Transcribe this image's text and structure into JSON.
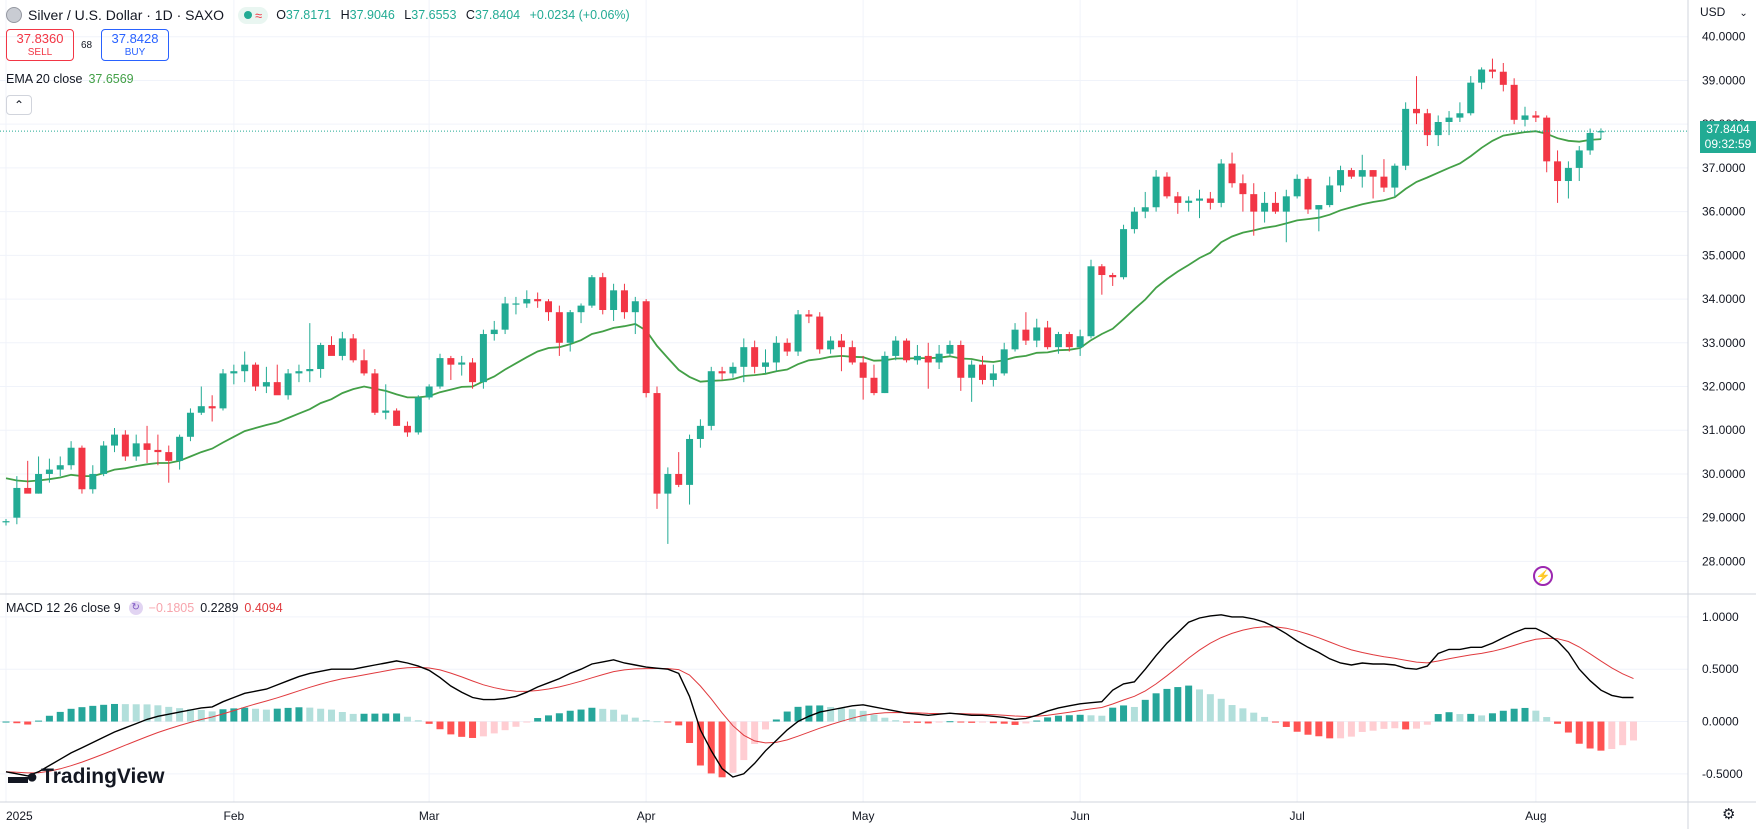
{
  "header": {
    "title": "Silver / U.S. Dollar · 1D · SAXO",
    "ohlc": {
      "open_label": "O",
      "open": "37.8171",
      "high_label": "H",
      "high": "37.9046",
      "low_label": "L",
      "low": "37.6553",
      "close_label": "C",
      "close": "37.8404",
      "change": "+0.0234 (+0.06%)"
    }
  },
  "trade": {
    "sell_price": "37.8360",
    "sell_label": "SELL",
    "spread": "68",
    "buy_price": "37.8428",
    "buy_label": "BUY"
  },
  "ema": {
    "label": "EMA 20 close",
    "value": "37.6569"
  },
  "macd": {
    "label": "MACD 12 26 close 9",
    "hist": "−0.1805",
    "macd": "0.2289",
    "signal": "0.4094"
  },
  "currency": "USD",
  "current_price": {
    "price": "37.8404",
    "countdown": "09:32:59"
  },
  "brand": "TradingView",
  "colors": {
    "up": "#22ab94",
    "down": "#f23645",
    "ema": "#43a047",
    "macd": "#000000",
    "signal": "#e03a3e",
    "hist_up_strong": "#26a69a",
    "hist_up_weak": "#b2dfdb",
    "hist_down_strong": "#ff5252",
    "hist_down_weak": "#ffcdd2"
  },
  "chart_data": [
    {
      "type": "candlestick",
      "ylim": [
        27.3,
        40.2
      ],
      "yticks": [
        "28.0000",
        "29.0000",
        "30.0000",
        "31.0000",
        "32.0000",
        "33.0000",
        "34.0000",
        "35.0000",
        "36.0000",
        "37.0000",
        "38.0000",
        "39.0000",
        "40.0000"
      ],
      "xticks": [
        {
          "label": "2025",
          "bar": 0
        },
        {
          "label": "Feb",
          "bar": 21
        },
        {
          "label": "Mar",
          "bar": 39
        },
        {
          "label": "Apr",
          "bar": 59
        },
        {
          "label": "May",
          "bar": 79
        },
        {
          "label": "Jun",
          "bar": 99
        },
        {
          "label": "Jul",
          "bar": 119
        },
        {
          "label": "Aug",
          "bar": 141
        }
      ],
      "candles": [
        [
          28.9,
          28.97,
          28.82,
          28.92
        ],
        [
          29.0,
          29.95,
          28.85,
          29.68
        ],
        [
          29.68,
          30.3,
          29.6,
          29.55
        ],
        [
          29.55,
          30.4,
          29.55,
          30.0
        ],
        [
          30.0,
          30.35,
          29.8,
          30.1
        ],
        [
          30.1,
          30.4,
          29.95,
          30.2
        ],
        [
          30.2,
          30.75,
          30.1,
          30.6
        ],
        [
          30.6,
          30.65,
          29.55,
          29.65
        ],
        [
          29.65,
          30.2,
          29.55,
          30.0
        ],
        [
          30.0,
          30.75,
          29.95,
          30.65
        ],
        [
          30.65,
          31.05,
          30.5,
          30.9
        ],
        [
          30.9,
          31.0,
          30.3,
          30.4
        ],
        [
          30.4,
          30.9,
          30.3,
          30.7
        ],
        [
          30.7,
          31.1,
          30.25,
          30.55
        ],
        [
          30.55,
          30.9,
          30.2,
          30.5
        ],
        [
          30.5,
          30.65,
          29.8,
          30.3
        ],
        [
          30.3,
          30.9,
          30.1,
          30.85
        ],
        [
          30.85,
          31.5,
          30.75,
          31.4
        ],
        [
          31.4,
          32.0,
          31.35,
          31.55
        ],
        [
          31.55,
          31.8,
          31.2,
          31.5
        ],
        [
          31.5,
          32.4,
          31.45,
          32.3
        ],
        [
          32.3,
          32.5,
          32.05,
          32.35
        ],
        [
          32.35,
          32.8,
          32.1,
          32.5
        ],
        [
          32.5,
          32.55,
          31.9,
          32.0
        ],
        [
          32.0,
          32.45,
          31.85,
          32.1
        ],
        [
          32.1,
          32.5,
          31.85,
          31.8
        ],
        [
          31.8,
          32.4,
          31.7,
          32.3
        ],
        [
          32.3,
          32.5,
          32.1,
          32.35
        ],
        [
          32.35,
          33.45,
          32.1,
          32.4
        ],
        [
          32.4,
          33.0,
          32.2,
          32.95
        ],
        [
          32.95,
          33.15,
          32.8,
          32.7
        ],
        [
          32.7,
          33.25,
          32.6,
          33.1
        ],
        [
          33.1,
          33.2,
          32.55,
          32.6
        ],
        [
          32.6,
          32.85,
          32.25,
          32.3
        ],
        [
          32.3,
          32.4,
          31.35,
          31.4
        ],
        [
          31.4,
          32.05,
          31.25,
          31.45
        ],
        [
          31.45,
          31.5,
          31.1,
          31.1
        ],
        [
          31.1,
          31.2,
          30.85,
          30.95
        ],
        [
          30.95,
          31.8,
          30.9,
          31.75
        ],
        [
          31.75,
          32.05,
          31.7,
          32.0
        ],
        [
          32.0,
          32.75,
          31.95,
          32.65
        ],
        [
          32.65,
          32.7,
          32.15,
          32.5
        ],
        [
          32.5,
          32.7,
          32.25,
          32.55
        ],
        [
          32.55,
          32.65,
          31.95,
          32.1
        ],
        [
          32.1,
          33.3,
          31.95,
          33.2
        ],
        [
          33.2,
          33.5,
          33.05,
          33.3
        ],
        [
          33.3,
          34.05,
          33.2,
          33.9
        ],
        [
          33.9,
          34.05,
          33.65,
          33.9
        ],
        [
          33.9,
          34.2,
          33.8,
          34.0
        ],
        [
          34.0,
          34.15,
          33.8,
          33.95
        ],
        [
          33.95,
          34.0,
          33.5,
          33.7
        ],
        [
          33.7,
          33.85,
          32.7,
          33.0
        ],
        [
          33.0,
          33.75,
          32.8,
          33.7
        ],
        [
          33.7,
          33.9,
          33.45,
          33.85
        ],
        [
          33.85,
          34.55,
          33.8,
          34.5
        ],
        [
          34.5,
          34.6,
          33.65,
          33.75
        ],
        [
          33.75,
          34.35,
          33.5,
          34.2
        ],
        [
          34.2,
          34.35,
          33.55,
          33.7
        ],
        [
          33.7,
          34.05,
          33.2,
          33.95
        ],
        [
          33.95,
          34.0,
          31.75,
          31.85
        ],
        [
          31.85,
          32.0,
          29.2,
          29.55
        ],
        [
          29.55,
          30.15,
          28.4,
          30.0
        ],
        [
          30.0,
          30.5,
          29.7,
          29.75
        ],
        [
          29.75,
          30.9,
          29.3,
          30.8
        ],
        [
          30.8,
          31.25,
          30.6,
          31.1
        ],
        [
          31.1,
          32.45,
          31.0,
          32.35
        ],
        [
          32.35,
          32.45,
          32.15,
          32.3
        ],
        [
          32.3,
          32.55,
          32.2,
          32.45
        ],
        [
          32.45,
          33.1,
          32.1,
          32.9
        ],
        [
          32.9,
          33.05,
          32.3,
          32.45
        ],
        [
          32.45,
          32.85,
          32.3,
          32.55
        ],
        [
          32.55,
          33.15,
          32.35,
          33.0
        ],
        [
          33.0,
          33.1,
          32.7,
          32.8
        ],
        [
          32.8,
          33.75,
          32.7,
          33.65
        ],
        [
          33.65,
          33.75,
          33.45,
          33.6
        ],
        [
          33.6,
          33.7,
          32.75,
          32.85
        ],
        [
          32.85,
          33.15,
          32.75,
          33.05
        ],
        [
          33.05,
          33.2,
          32.35,
          32.9
        ],
        [
          32.9,
          33.05,
          32.5,
          32.55
        ],
        [
          32.55,
          32.7,
          31.7,
          32.2
        ],
        [
          32.2,
          32.5,
          31.8,
          31.85
        ],
        [
          31.85,
          32.8,
          31.85,
          32.7
        ],
        [
          32.7,
          33.15,
          32.6,
          33.05
        ],
        [
          33.05,
          33.1,
          32.55,
          32.6
        ],
        [
          32.6,
          32.95,
          32.5,
          32.7
        ],
        [
          32.7,
          33.0,
          31.95,
          32.55
        ],
        [
          32.55,
          32.95,
          32.4,
          32.75
        ],
        [
          32.75,
          33.05,
          32.7,
          32.95
        ],
        [
          32.95,
          33.05,
          31.9,
          32.2
        ],
        [
          32.2,
          32.6,
          31.65,
          32.5
        ],
        [
          32.5,
          32.7,
          32.05,
          32.15
        ],
        [
          32.15,
          32.5,
          32.0,
          32.3
        ],
        [
          32.3,
          33.0,
          32.25,
          32.85
        ],
        [
          32.85,
          33.45,
          32.8,
          33.3
        ],
        [
          33.3,
          33.7,
          32.95,
          33.05
        ],
        [
          33.05,
          33.55,
          32.9,
          33.35
        ],
        [
          33.35,
          33.5,
          32.85,
          32.9
        ],
        [
          32.9,
          33.25,
          32.75,
          33.2
        ],
        [
          33.2,
          33.25,
          32.8,
          32.9
        ],
        [
          32.9,
          33.3,
          32.7,
          33.15
        ],
        [
          33.15,
          34.9,
          33.1,
          34.75
        ],
        [
          34.75,
          34.8,
          34.1,
          34.55
        ],
        [
          34.55,
          34.6,
          34.3,
          34.5
        ],
        [
          34.5,
          35.7,
          34.45,
          35.6
        ],
        [
          35.6,
          36.1,
          35.5,
          36.0
        ],
        [
          36.0,
          36.45,
          35.85,
          36.1
        ],
        [
          36.1,
          36.95,
          36.0,
          36.8
        ],
        [
          36.8,
          36.9,
          36.3,
          36.35
        ],
        [
          36.35,
          36.45,
          35.95,
          36.2
        ],
        [
          36.2,
          36.35,
          36.0,
          36.25
        ],
        [
          36.25,
          36.5,
          35.85,
          36.3
        ],
        [
          36.3,
          36.45,
          36.05,
          36.2
        ],
        [
          36.2,
          37.2,
          36.1,
          37.1
        ],
        [
          37.1,
          37.35,
          36.55,
          36.65
        ],
        [
          36.65,
          36.85,
          36.0,
          36.4
        ],
        [
          36.4,
          36.65,
          35.45,
          36.0
        ],
        [
          36.0,
          36.45,
          35.75,
          36.2
        ],
        [
          36.2,
          36.45,
          35.95,
          36.0
        ],
        [
          36.0,
          36.5,
          35.3,
          36.35
        ],
        [
          36.35,
          36.85,
          36.3,
          36.75
        ],
        [
          36.75,
          36.8,
          35.95,
          36.05
        ],
        [
          36.05,
          36.15,
          35.55,
          36.15
        ],
        [
          36.15,
          36.8,
          36.1,
          36.6
        ],
        [
          36.6,
          37.05,
          36.45,
          36.95
        ],
        [
          36.95,
          37.0,
          36.75,
          36.8
        ],
        [
          36.8,
          37.3,
          36.55,
          36.95
        ],
        [
          36.95,
          36.95,
          36.3,
          36.8
        ],
        [
          36.8,
          37.2,
          36.45,
          36.55
        ],
        [
          36.55,
          37.1,
          36.35,
          37.05
        ],
        [
          37.05,
          38.5,
          36.95,
          38.35
        ],
        [
          38.35,
          39.1,
          38.0,
          38.25
        ],
        [
          38.25,
          38.35,
          37.5,
          37.75
        ],
        [
          37.75,
          38.2,
          37.5,
          38.05
        ],
        [
          38.05,
          38.3,
          37.75,
          38.15
        ],
        [
          38.15,
          38.5,
          38.05,
          38.25
        ],
        [
          38.25,
          39.1,
          38.2,
          38.95
        ],
        [
          38.95,
          39.3,
          38.8,
          39.25
        ],
        [
          39.25,
          39.5,
          39.05,
          39.2
        ],
        [
          39.2,
          39.4,
          38.75,
          38.9
        ],
        [
          38.9,
          39.05,
          38.0,
          38.1
        ],
        [
          38.1,
          38.4,
          37.95,
          38.2
        ],
        [
          38.2,
          38.3,
          38.05,
          38.15
        ],
        [
          38.15,
          38.2,
          36.9,
          37.15
        ],
        [
          37.15,
          37.4,
          36.2,
          36.7
        ],
        [
          36.7,
          37.15,
          36.3,
          37.0
        ],
        [
          37.0,
          37.5,
          36.7,
          37.4
        ],
        [
          37.4,
          37.9,
          37.3,
          37.8
        ],
        [
          37.8171,
          37.9046,
          37.6553,
          37.8404
        ]
      ],
      "ema20": [
        29.9,
        29.85,
        29.83,
        29.85,
        29.88,
        29.92,
        29.98,
        29.95,
        29.95,
        30.02,
        30.1,
        30.13,
        30.18,
        30.22,
        30.25,
        30.25,
        30.3,
        30.4,
        30.5,
        30.58,
        30.72,
        30.85,
        30.98,
        31.05,
        31.12,
        31.18,
        31.28,
        31.38,
        31.48,
        31.62,
        31.71,
        31.85,
        31.94,
        32.0,
        31.95,
        31.9,
        31.82,
        31.75,
        31.75,
        31.78,
        31.87,
        31.93,
        31.99,
        32.0,
        32.12,
        32.23,
        32.39,
        32.53,
        32.67,
        32.8,
        32.88,
        32.9,
        32.97,
        33.06,
        33.2,
        33.26,
        33.34,
        33.38,
        33.43,
        33.28,
        32.93,
        32.65,
        32.38,
        32.22,
        32.11,
        32.13,
        32.14,
        32.17,
        32.24,
        32.26,
        32.29,
        32.35,
        32.39,
        32.51,
        32.6,
        32.63,
        32.68,
        32.7,
        32.68,
        32.67,
        32.59,
        32.6,
        32.64,
        32.64,
        32.65,
        32.65,
        32.66,
        32.69,
        32.64,
        32.63,
        32.58,
        32.56,
        32.6,
        32.67,
        32.7,
        32.77,
        32.78,
        32.83,
        32.84,
        32.88,
        33.06,
        33.2,
        33.32,
        33.54,
        33.77,
        33.99,
        34.26,
        34.46,
        34.63,
        34.78,
        34.94,
        35.06,
        35.3,
        35.43,
        35.52,
        35.57,
        35.63,
        35.67,
        35.73,
        35.8,
        35.83,
        35.86,
        35.93,
        36.03,
        36.1,
        36.17,
        36.22,
        36.26,
        36.33,
        36.52,
        36.68,
        36.78,
        36.89,
        37.0,
        37.1,
        37.27,
        37.46,
        37.62,
        37.74,
        37.78,
        37.82,
        37.84,
        37.78,
        37.68,
        37.62,
        37.6,
        37.64,
        37.66
      ]
    },
    {
      "type": "macd",
      "ylim": [
        -0.75,
        1.2
      ],
      "yticks": [
        "1.0000",
        "0.5000",
        "0.0000",
        "-0.5000"
      ],
      "macd": [
        -0.48,
        -0.5,
        -0.52,
        -0.48,
        -0.42,
        -0.36,
        -0.3,
        -0.25,
        -0.2,
        -0.15,
        -0.1,
        -0.06,
        -0.02,
        0.02,
        0.05,
        0.07,
        0.09,
        0.11,
        0.13,
        0.14,
        0.19,
        0.23,
        0.27,
        0.29,
        0.31,
        0.35,
        0.39,
        0.43,
        0.46,
        0.48,
        0.5,
        0.5,
        0.5,
        0.52,
        0.54,
        0.56,
        0.58,
        0.56,
        0.53,
        0.49,
        0.42,
        0.34,
        0.28,
        0.23,
        0.21,
        0.21,
        0.22,
        0.24,
        0.28,
        0.33,
        0.37,
        0.41,
        0.46,
        0.5,
        0.55,
        0.57,
        0.59,
        0.56,
        0.54,
        0.52,
        0.51,
        0.5,
        0.46,
        0.24,
        -0.08,
        -0.28,
        -0.45,
        -0.53,
        -0.5,
        -0.4,
        -0.28,
        -0.18,
        -0.08,
        0.0,
        0.05,
        0.09,
        0.11,
        0.13,
        0.15,
        0.16,
        0.14,
        0.12,
        0.1,
        0.08,
        0.07,
        0.06,
        0.07,
        0.08,
        0.07,
        0.06,
        0.06,
        0.05,
        0.04,
        0.02,
        0.03,
        0.06,
        0.1,
        0.13,
        0.15,
        0.17,
        0.18,
        0.19,
        0.3,
        0.36,
        0.38,
        0.5,
        0.63,
        0.75,
        0.85,
        0.95,
        0.99,
        1.01,
        1.02,
        1.0,
        1.0,
        0.98,
        0.95,
        0.9,
        0.84,
        0.77,
        0.71,
        0.66,
        0.6,
        0.56,
        0.54,
        0.56,
        0.55,
        0.55,
        0.54,
        0.51,
        0.5,
        0.53,
        0.65,
        0.69,
        0.69,
        0.71,
        0.71,
        0.75,
        0.8,
        0.85,
        0.89,
        0.89,
        0.84,
        0.77,
        0.66,
        0.5,
        0.39,
        0.3,
        0.25,
        0.23,
        0.23
      ]
    }
  ]
}
